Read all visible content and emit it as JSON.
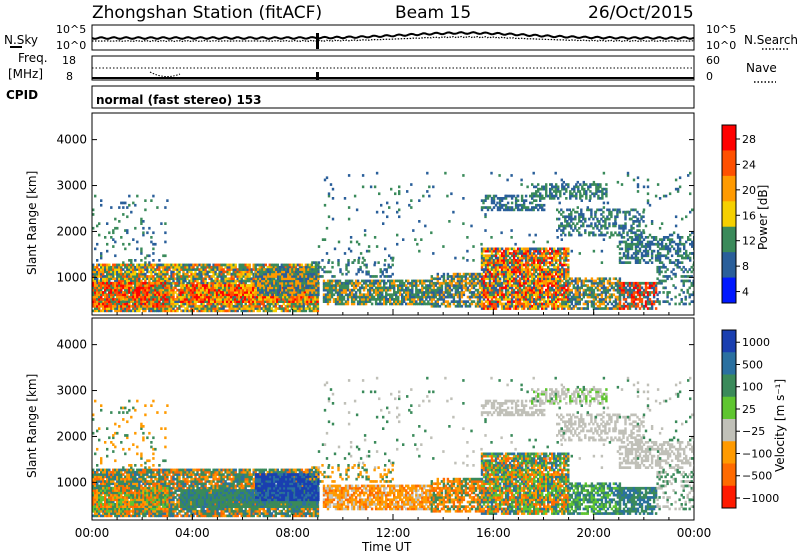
{
  "header": {
    "station": "Zhongshan Station (fitACF)",
    "beam": "Beam 15",
    "date": "26/Oct/2015"
  },
  "left_labels": {
    "nsky": "N.Sky",
    "freq_line1": "Freq.",
    "freq_line2": "[MHz]",
    "cpid": "CPID"
  },
  "right_labels": {
    "nsearch": "N.Search",
    "nave": "Nave"
  },
  "cpid_text": "normal (fast stereo) 153",
  "noise_panel": {
    "left_ticks": [
      "10^5",
      "10^0"
    ],
    "right_ticks": [
      "10^5",
      "10^0"
    ]
  },
  "freq_panel": {
    "left_ticks": [
      "18",
      "8"
    ],
    "right_ticks": [
      "60",
      "0"
    ]
  },
  "chart_data": [
    {
      "type": "heatmap",
      "name": "power",
      "ylabel": "Slant Range [km]",
      "ylim": [
        180,
        4580
      ],
      "yticks": [
        1000,
        2000,
        3000,
        4000
      ],
      "xlim": [
        0,
        24
      ],
      "colorbar_label": "Power [dB]",
      "colorbar_ticks": [
        "28",
        "24",
        "20",
        "16",
        "12",
        "8",
        "4"
      ],
      "colorbar_colors": [
        "#ff0000",
        "#ff5000",
        "#ff9a00",
        "#f5d000",
        "#3a8a5a",
        "#2a5f9a",
        "#0018ff"
      ]
    },
    {
      "type": "heatmap",
      "name": "velocity",
      "ylabel": "Slant Range [km]",
      "ylim": [
        180,
        4580
      ],
      "yticks": [
        1000,
        2000,
        3000,
        4000
      ],
      "xlim": [
        0,
        24
      ],
      "colorbar_label": "Velocity [m s⁻¹]",
      "colorbar_ticks": [
        "1000",
        "500",
        "100",
        "25",
        "−25",
        "−100",
        "−500",
        "−1000"
      ],
      "colorbar_colors": [
        "#1a3fb0",
        "#2a70a0",
        "#3a8a5a",
        "#5fc530",
        "#c0c0b8",
        "#ff9a00",
        "#ff6a00",
        "#ff1a00"
      ]
    }
  ],
  "x_axis": {
    "ticks": [
      "00:00",
      "04:00",
      "08:00",
      "12:00",
      "16:00",
      "20:00",
      "00:00"
    ],
    "label": "Time UT"
  }
}
